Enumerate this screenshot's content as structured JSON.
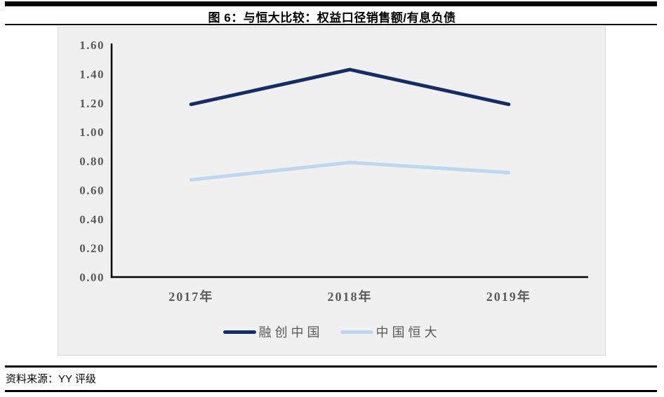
{
  "header": {
    "title": "图 6：与恒大比较：权益口径销售额/有息负债"
  },
  "chart_data": {
    "type": "line",
    "title": "图 6：与恒大比较：权益口径销售额/有息负债",
    "categories": [
      "2017年",
      "2018年",
      "2019年"
    ],
    "series": [
      {
        "name": "融创中国",
        "color": "#152C66",
        "values": [
          1.19,
          1.43,
          1.19
        ]
      },
      {
        "name": "中国恒大",
        "color": "#BDD7EE",
        "values": [
          0.67,
          0.79,
          0.72
        ]
      }
    ],
    "ylim": [
      0,
      1.6
    ],
    "y_ticks": [
      "1.60",
      "1.40",
      "1.20",
      "1.00",
      "0.80",
      "0.60",
      "0.40",
      "0.20",
      "0.00"
    ],
    "grid": false,
    "legend_position": "bottom-center",
    "plot_background": "#F0F0F0",
    "axis_color": "#000000",
    "tick_label_color": "#595959",
    "line_width": 5
  },
  "footer": {
    "source": "资料来源：YY 评级"
  }
}
